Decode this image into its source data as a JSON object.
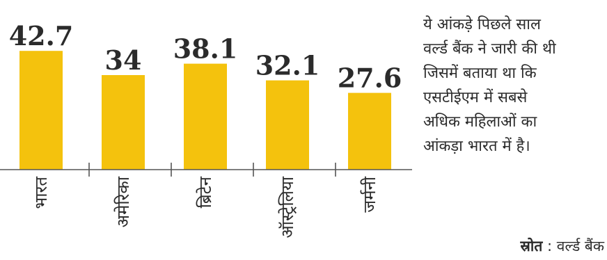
{
  "chart_data": {
    "type": "bar",
    "categories": [
      "भारत",
      "अमेरिका",
      "ब्रिटेन",
      "ऑस्ट्रेलिया",
      "जर्मनी"
    ],
    "values": [
      42.7,
      34,
      38.1,
      32.1,
      27.6
    ],
    "value_labels": [
      "42.7",
      "34",
      "38.1",
      "32.1",
      "27.6"
    ],
    "bar_color": "#f4c20d",
    "label_color": "#2b2b2b",
    "ylim": [
      0,
      50
    ],
    "grid": false,
    "legend": "none"
  },
  "note": {
    "lines": [
      "ये आंकड़े पिछले साल",
      "वर्ल्ड बैंक ने जारी की थी",
      "जिसमें बताया था कि",
      "एसटीईएम में सबसे",
      "अधिक महिलाओं का",
      "आंकड़ा भारत में है।"
    ]
  },
  "source": {
    "key": "स्रोत",
    "value": "वर्ल्ड बैंक"
  }
}
